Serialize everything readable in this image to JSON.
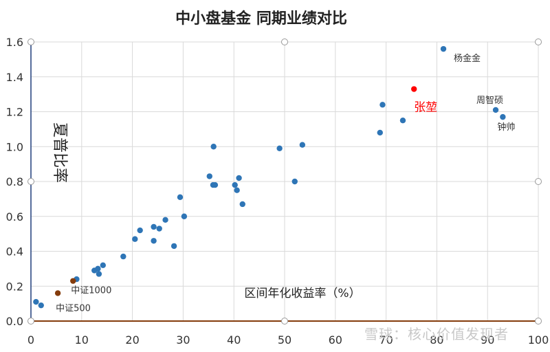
{
  "chart_data": {
    "type": "scatter",
    "title": "中小盘基金  同期业绩对比",
    "xlabel": "区间年化收益率（%）",
    "ylabel": "夏普比率",
    "xlim": [
      0,
      100
    ],
    "ylim": [
      0,
      1.6
    ],
    "x_ticks": [
      "0",
      "10",
      "20",
      "30",
      "40",
      "50",
      "60",
      "70",
      "80",
      "90",
      "100"
    ],
    "y_ticks": [
      "0.0",
      "0.2",
      "0.4",
      "0.6",
      "0.8",
      "1.0",
      "1.2",
      "1.4",
      "1.6"
    ],
    "grid": true,
    "points": [
      {
        "x": 1.0,
        "y": 0.11,
        "color": "#2e75b6"
      },
      {
        "x": 2.0,
        "y": 0.09,
        "color": "#2e75b6"
      },
      {
        "x": 9.0,
        "y": 0.24,
        "color": "#2e75b6"
      },
      {
        "x": 12.5,
        "y": 0.29,
        "color": "#2e75b6"
      },
      {
        "x": 13.2,
        "y": 0.3,
        "color": "#2e75b6"
      },
      {
        "x": 13.4,
        "y": 0.27,
        "color": "#2e75b6"
      },
      {
        "x": 14.2,
        "y": 0.32,
        "color": "#2e75b6"
      },
      {
        "x": 18.2,
        "y": 0.37,
        "color": "#2e75b6"
      },
      {
        "x": 20.5,
        "y": 0.47,
        "color": "#2e75b6"
      },
      {
        "x": 21.5,
        "y": 0.52,
        "color": "#2e75b6"
      },
      {
        "x": 24.2,
        "y": 0.54,
        "color": "#2e75b6"
      },
      {
        "x": 24.2,
        "y": 0.46,
        "color": "#2e75b6"
      },
      {
        "x": 25.3,
        "y": 0.53,
        "color": "#2e75b6"
      },
      {
        "x": 26.5,
        "y": 0.58,
        "color": "#2e75b6"
      },
      {
        "x": 28.2,
        "y": 0.43,
        "color": "#2e75b6"
      },
      {
        "x": 29.4,
        "y": 0.71,
        "color": "#2e75b6"
      },
      {
        "x": 30.2,
        "y": 0.6,
        "color": "#2e75b6"
      },
      {
        "x": 35.2,
        "y": 0.83,
        "color": "#2e75b6"
      },
      {
        "x": 35.9,
        "y": 0.78,
        "color": "#2e75b6"
      },
      {
        "x": 36.3,
        "y": 0.78,
        "color": "#2e75b6"
      },
      {
        "x": 36.0,
        "y": 1.0,
        "color": "#2e75b6"
      },
      {
        "x": 40.2,
        "y": 0.78,
        "color": "#2e75b6"
      },
      {
        "x": 40.6,
        "y": 0.75,
        "color": "#2e75b6"
      },
      {
        "x": 41.0,
        "y": 0.82,
        "color": "#2e75b6"
      },
      {
        "x": 41.7,
        "y": 0.67,
        "color": "#2e75b6"
      },
      {
        "x": 49.0,
        "y": 0.99,
        "color": "#2e75b6"
      },
      {
        "x": 52.0,
        "y": 0.8,
        "color": "#2e75b6"
      },
      {
        "x": 53.5,
        "y": 1.01,
        "color": "#2e75b6"
      },
      {
        "x": 68.8,
        "y": 1.08,
        "color": "#2e75b6"
      },
      {
        "x": 69.3,
        "y": 1.24,
        "color": "#2e75b6"
      },
      {
        "x": 73.3,
        "y": 1.15,
        "color": "#2e75b6"
      },
      {
        "x": 81.3,
        "y": 1.56,
        "color": "#2e75b6",
        "label": "杨金金"
      },
      {
        "x": 91.6,
        "y": 1.21,
        "color": "#2e75b6",
        "label": "周智硕"
      },
      {
        "x": 93.0,
        "y": 1.17,
        "color": "#2e75b6",
        "label": "钟帅"
      },
      {
        "x": 75.5,
        "y": 1.33,
        "color": "#ff0000",
        "label": "张堃"
      },
      {
        "x": 5.3,
        "y": 0.16,
        "color": "#843c0c",
        "label": "中证500"
      },
      {
        "x": 8.3,
        "y": 0.23,
        "color": "#843c0c",
        "label": "中证1000"
      }
    ]
  },
  "watermark": "雪球：核心价值发现者"
}
